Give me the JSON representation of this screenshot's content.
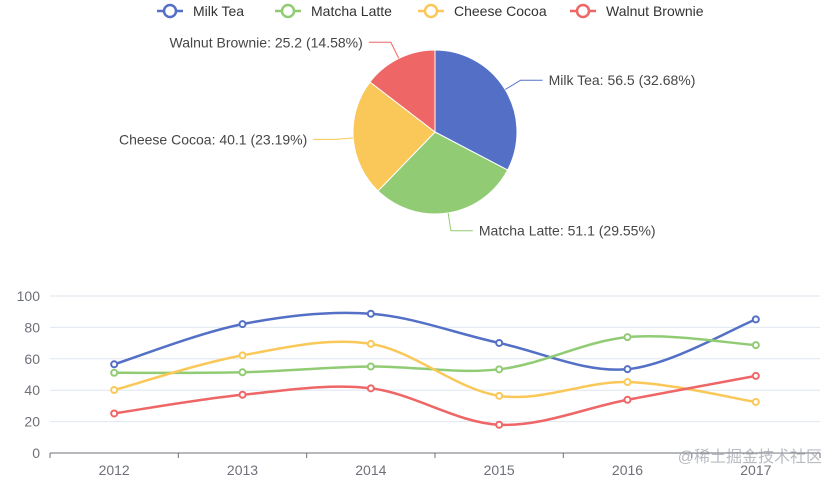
{
  "colors": {
    "Milk Tea": "#5470c6",
    "Matcha Latte": "#91cc75",
    "Cheese Cocoa": "#fac858",
    "Walnut Brownie": "#ee6666",
    "axis": "#6e7079",
    "grid": "#e0e6f1",
    "text": "#464646"
  },
  "watermark": "@稀土掘金技术社区",
  "chart_data": [
    {
      "type": "pie",
      "legend": [
        "Milk Tea",
        "Matcha Latte",
        "Cheese Cocoa",
        "Walnut Brownie"
      ],
      "legend_position": "top-center",
      "slices": [
        {
          "name": "Milk Tea",
          "value": 56.5,
          "label": "Milk Tea: 56.5 (32.68%)"
        },
        {
          "name": "Matcha Latte",
          "value": 51.1,
          "label": "Matcha Latte: 51.1 (29.55%)"
        },
        {
          "name": "Cheese Cocoa",
          "value": 40.1,
          "label": "Cheese Cocoa: 40.1 (23.19%)"
        },
        {
          "name": "Walnut Brownie",
          "value": 25.2,
          "label": "Walnut Brownie: 25.2 (14.58%)"
        }
      ]
    },
    {
      "type": "line",
      "smooth": true,
      "categories": [
        "2012",
        "2013",
        "2014",
        "2015",
        "2016",
        "2017"
      ],
      "ylim": [
        0,
        100
      ],
      "yticks": [
        0,
        20,
        40,
        60,
        80,
        100
      ],
      "grid": true,
      "series": [
        {
          "name": "Milk Tea",
          "values": [
            56.5,
            82.1,
            88.7,
            70.1,
            53.4,
            85.1
          ]
        },
        {
          "name": "Matcha Latte",
          "values": [
            51.1,
            51.4,
            55.1,
            53.3,
            73.8,
            68.7
          ]
        },
        {
          "name": "Cheese Cocoa",
          "values": [
            40.1,
            62.2,
            69.5,
            36.4,
            45.2,
            32.5
          ]
        },
        {
          "name": "Walnut Brownie",
          "values": [
            25.2,
            37.1,
            41.2,
            18.0,
            33.9,
            49.1
          ]
        }
      ]
    }
  ]
}
